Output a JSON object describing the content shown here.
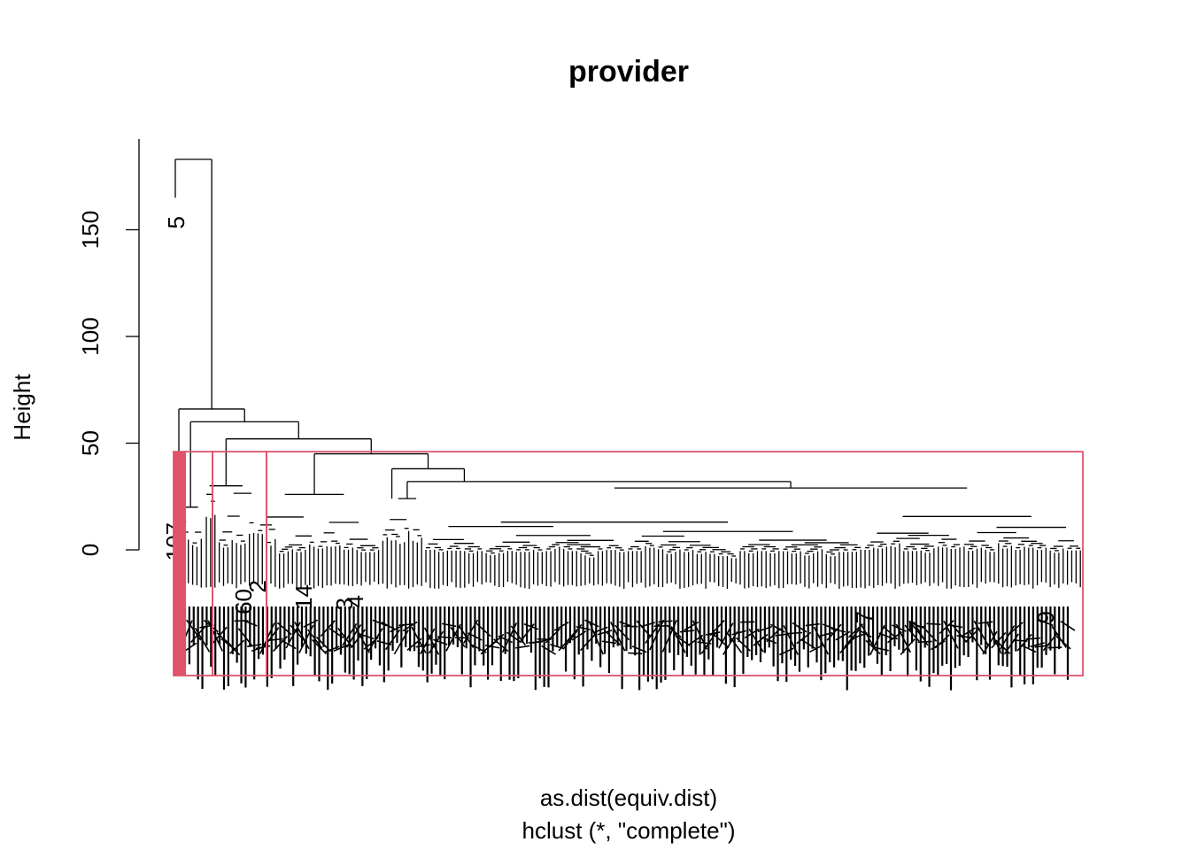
{
  "chart_data": {
    "type": "dendrogram",
    "title": "provider",
    "xlabel": "as.dist(equiv.dist)",
    "sublabel": "hclust (*, \"complete\")",
    "ylabel": "Height",
    "yticks": [
      0,
      50,
      100,
      150
    ],
    "ylim": [
      0,
      185
    ],
    "method": "complete",
    "root_height": 183,
    "leaf_count": 206,
    "singleton_leaf": {
      "label": "5",
      "height_top": 165
    },
    "merges": [
      {
        "name": "root",
        "height": 183
      },
      {
        "name": "rest",
        "height": 66
      },
      {
        "name": "main",
        "height": 60
      },
      {
        "name": "big-group",
        "height": 52
      },
      {
        "name": "big-inner",
        "height": 45
      },
      {
        "name": "big-mid",
        "height": 38
      },
      {
        "name": "big-spine",
        "height": 32
      },
      {
        "name": "big-trunk",
        "height": 29
      },
      {
        "name": "mid-group",
        "height": 30
      },
      {
        "name": "small-group",
        "height": 20
      }
    ],
    "cut_boxes": {
      "color": "#DF536B",
      "count": 4,
      "height": 46
    },
    "leaf_labels_visible": [
      "107",
      "14",
      "60",
      "3",
      "7",
      "7",
      "9",
      "4",
      "2"
    ]
  }
}
